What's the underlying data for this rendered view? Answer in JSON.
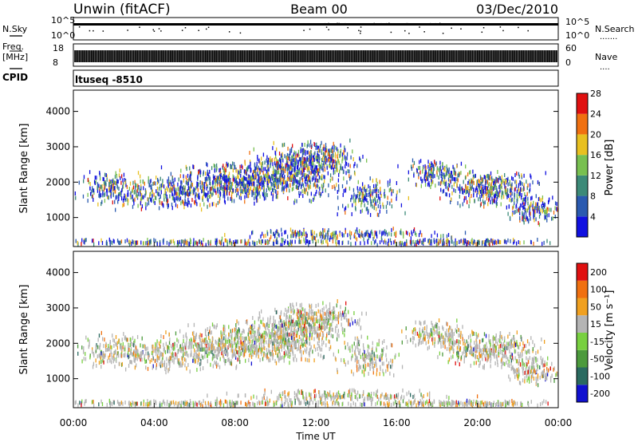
{
  "header": {
    "station": "Unwin (fitACF)",
    "beam": "Beam 00",
    "date": "03/Dec/2010"
  },
  "noise_panel": {
    "left_label": "N.Sky",
    "right_label": "N.Search",
    "left_ticks": [
      "10^5",
      "10^0"
    ],
    "right_ticks": [
      "10^5",
      "10^0"
    ],
    "right_symbol": "......."
  },
  "freq_panel": {
    "left_label_1": "Freq.",
    "left_label_2": "[MHz]",
    "right_label": "Nave",
    "left_ticks": [
      "18",
      "8"
    ],
    "right_ticks": [
      "60",
      "0"
    ],
    "right_symbol": "...."
  },
  "cpid": {
    "label": "CPID",
    "value": "ltuseq -8510"
  },
  "chart_data": [
    {
      "type": "heatmap",
      "title": "",
      "ylabel": "Slant Range [km]",
      "y_ticks": [
        "1000",
        "2000",
        "3000",
        "4000"
      ],
      "ylim": [
        180,
        4600
      ],
      "colorbar": {
        "label": "Power [dB]",
        "ticks": [
          "4",
          "8",
          "12",
          "16",
          "20",
          "24",
          "28"
        ],
        "range": [
          0,
          32
        ],
        "colors": [
          "#1010e0",
          "#2a5ab0",
          "#3c8a78",
          "#78c050",
          "#e8c020",
          "#f07010",
          "#e01010"
        ]
      }
    },
    {
      "type": "heatmap",
      "title": "",
      "ylabel": "Slant Range [km]",
      "y_ticks": [
        "1000",
        "2000",
        "3000",
        "4000"
      ],
      "ylim": [
        180,
        4600
      ],
      "xlabel": "Time UT",
      "x_ticks": [
        "00:00",
        "04:00",
        "08:00",
        "12:00",
        "16:00",
        "20:00",
        "00:00"
      ],
      "colorbar": {
        "label": "Velocity [m s⁻¹]",
        "ticks": [
          "200",
          "100",
          "50",
          "15",
          "-15",
          "-50",
          "-100",
          "-200"
        ],
        "colors": [
          "#1010d0",
          "#2a6a60",
          "#4c9a3c",
          "#78d040",
          "#b4b4b4",
          "#f0a020",
          "#f07010",
          "#e01010"
        ]
      }
    }
  ]
}
